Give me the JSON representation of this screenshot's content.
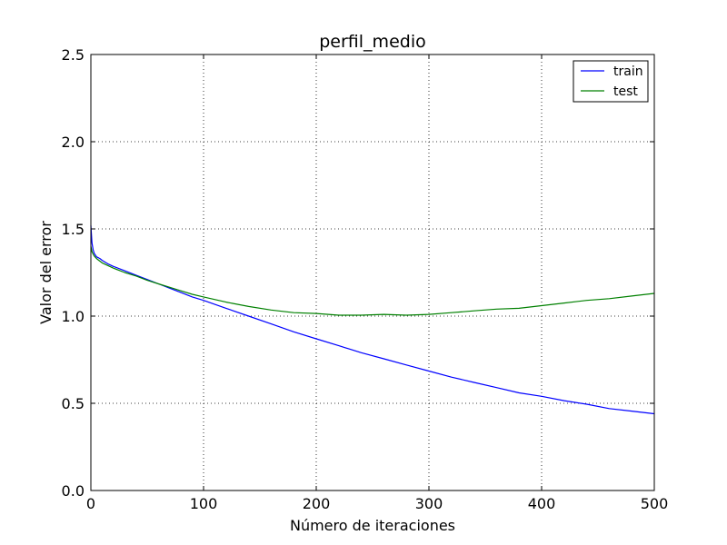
{
  "chart_data": {
    "type": "line",
    "title": "perfil_medio",
    "xlabel": "Número de iteraciones",
    "ylabel": "Valor del error",
    "xlim": [
      0,
      500
    ],
    "ylim": [
      0,
      2.5
    ],
    "xticks": [
      0,
      100,
      200,
      300,
      400,
      500
    ],
    "yticks": [
      0.0,
      0.5,
      1.0,
      1.5,
      2.0,
      2.5
    ],
    "xtick_labels": [
      "0",
      "100",
      "200",
      "300",
      "400",
      "500"
    ],
    "ytick_labels": [
      "0.0",
      "0.5",
      "1.0",
      "1.5",
      "2.0",
      "2.5"
    ],
    "grid": true,
    "legend_position": "top-right",
    "series": [
      {
        "name": "train",
        "color": "#0000ff",
        "x": [
          0,
          1,
          2,
          3,
          5,
          8,
          10,
          15,
          20,
          30,
          40,
          50,
          60,
          70,
          80,
          90,
          100,
          120,
          140,
          160,
          180,
          200,
          220,
          240,
          260,
          280,
          300,
          320,
          340,
          360,
          380,
          400,
          420,
          440,
          460,
          480,
          500
        ],
        "y": [
          1.52,
          1.42,
          1.38,
          1.36,
          1.34,
          1.33,
          1.32,
          1.3,
          1.285,
          1.26,
          1.235,
          1.21,
          1.185,
          1.16,
          1.135,
          1.11,
          1.09,
          1.045,
          1.0,
          0.955,
          0.91,
          0.87,
          0.83,
          0.79,
          0.755,
          0.72,
          0.685,
          0.65,
          0.62,
          0.59,
          0.56,
          0.54,
          0.515,
          0.495,
          0.47,
          0.455,
          0.44
        ]
      },
      {
        "name": "test",
        "color": "#008000",
        "x": [
          0,
          1,
          2,
          3,
          5,
          8,
          10,
          15,
          20,
          30,
          40,
          50,
          60,
          70,
          80,
          90,
          100,
          120,
          140,
          160,
          180,
          200,
          220,
          240,
          260,
          280,
          300,
          320,
          340,
          360,
          380,
          400,
          420,
          440,
          460,
          480,
          500
        ],
        "y": [
          1.4,
          1.37,
          1.355,
          1.345,
          1.33,
          1.315,
          1.305,
          1.29,
          1.275,
          1.25,
          1.23,
          1.205,
          1.185,
          1.165,
          1.145,
          1.125,
          1.11,
          1.08,
          1.055,
          1.035,
          1.02,
          1.015,
          1.005,
          1.005,
          1.01,
          1.005,
          1.01,
          1.02,
          1.03,
          1.04,
          1.045,
          1.06,
          1.075,
          1.09,
          1.1,
          1.115,
          1.13
        ]
      }
    ]
  }
}
